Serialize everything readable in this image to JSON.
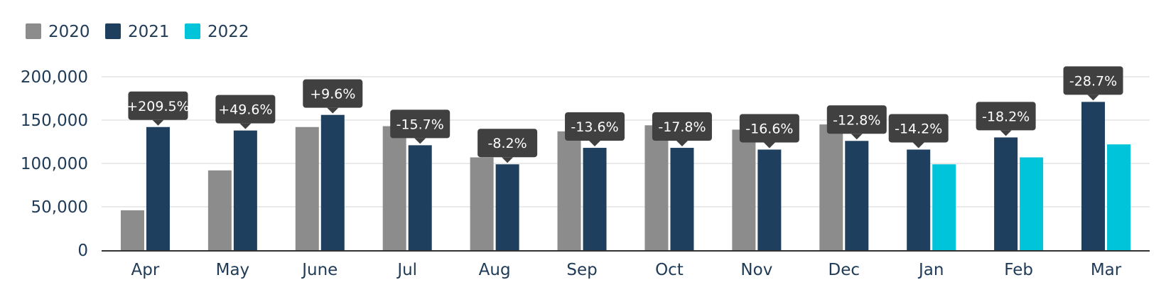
{
  "chart_data": {
    "type": "bar",
    "categories": [
      "Apr",
      "May",
      "June",
      "Jul",
      "Aug",
      "Sep",
      "Oct",
      "Nov",
      "Dec",
      "Jan",
      "Feb",
      "Mar"
    ],
    "series": [
      {
        "name": "2020",
        "values": [
          46000,
          92000,
          142000,
          143000,
          107000,
          137000,
          144000,
          139000,
          145000,
          null,
          null,
          null
        ]
      },
      {
        "name": "2021",
        "values": [
          142000,
          138000,
          156000,
          121000,
          99000,
          118000,
          118000,
          116000,
          126000,
          116000,
          130000,
          171000
        ]
      },
      {
        "name": "2022",
        "values": [
          null,
          null,
          null,
          null,
          null,
          null,
          null,
          null,
          null,
          99000,
          107000,
          122000
        ]
      }
    ],
    "annotations": [
      "+209.5%",
      "+49.6%",
      "+9.6%",
      "-15.7%",
      "-8.2%",
      "-13.6%",
      "-17.8%",
      "-16.6%",
      "-12.8%",
      "-14.2%",
      "-18.2%",
      "-28.7%"
    ],
    "y_ticks": [
      "0",
      "50,000",
      "100,000",
      "150,000",
      "200,000"
    ],
    "ylim": [
      0,
      200000
    ],
    "title": "",
    "xlabel": "",
    "ylabel": "",
    "grid": true,
    "legend_position": "top-left"
  },
  "colors": {
    "2020": "#8c8c8c",
    "2021": "#1e3f5e",
    "2022": "#00c4d9",
    "callout": "#404040",
    "grid": "#e3e3e3",
    "axis": "#333333",
    "text": "#1f3b57"
  }
}
